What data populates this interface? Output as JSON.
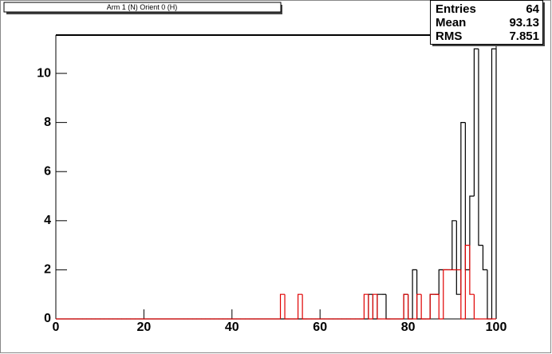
{
  "title": "Arm 1 (N) Orient 0 (H)",
  "stats": {
    "rows": [
      {
        "label": "Entries",
        "value": 64
      },
      {
        "label": "Mean",
        "value": 93.13
      },
      {
        "label": "RMS",
        "value": 7.851
      }
    ]
  },
  "chart_data": {
    "type": "histogram",
    "bins": [
      0,
      1,
      2,
      3,
      4,
      5,
      6,
      7,
      8,
      9,
      10,
      11,
      12,
      13,
      14,
      15,
      16,
      17,
      18,
      19,
      20,
      21,
      22,
      23,
      24,
      25,
      26,
      27,
      28,
      29,
      30,
      31,
      32,
      33,
      34,
      35,
      36,
      37,
      38,
      39,
      40,
      41,
      42,
      43,
      44,
      45,
      46,
      47,
      48,
      49,
      50,
      51,
      52,
      53,
      54,
      55,
      56,
      57,
      58,
      59,
      60,
      61,
      62,
      63,
      64,
      65,
      66,
      67,
      68,
      69,
      70,
      71,
      72,
      73,
      74,
      75,
      76,
      77,
      78,
      79,
      80,
      81,
      82,
      83,
      84,
      85,
      86,
      87,
      88,
      89,
      90,
      91,
      92,
      93,
      94,
      95,
      96,
      97,
      98,
      99,
      100
    ],
    "series": [
      {
        "color": "#000000",
        "values": [
          0,
          0,
          0,
          0,
          0,
          0,
          0,
          0,
          0,
          0,
          0,
          0,
          0,
          0,
          0,
          0,
          0,
          0,
          0,
          0,
          0,
          0,
          0,
          0,
          0,
          0,
          0,
          0,
          0,
          0,
          0,
          0,
          0,
          0,
          0,
          0,
          0,
          0,
          0,
          0,
          0,
          0,
          0,
          0,
          0,
          0,
          0,
          0,
          0,
          0,
          0,
          0,
          0,
          0,
          0,
          0,
          0,
          0,
          0,
          0,
          0,
          0,
          0,
          0,
          0,
          0,
          0,
          0,
          0,
          0,
          0,
          1,
          0,
          1,
          1,
          0,
          0,
          0,
          0,
          1,
          0,
          2,
          0,
          0,
          0,
          1,
          1,
          2,
          2,
          2,
          4,
          1,
          8,
          2,
          5,
          11,
          3,
          2,
          0,
          11
        ]
      },
      {
        "color": "#e00000",
        "values": [
          0,
          0,
          0,
          0,
          0,
          0,
          0,
          0,
          0,
          0,
          0,
          0,
          0,
          0,
          0,
          0,
          0,
          0,
          0,
          0,
          0,
          0,
          0,
          0,
          0,
          0,
          0,
          0,
          0,
          0,
          0,
          0,
          0,
          0,
          0,
          0,
          0,
          0,
          0,
          0,
          0,
          0,
          0,
          0,
          0,
          0,
          0,
          0,
          0,
          0,
          0,
          1,
          0,
          0,
          0,
          1,
          0,
          0,
          0,
          0,
          0,
          0,
          0,
          0,
          0,
          0,
          0,
          0,
          0,
          0,
          1,
          0,
          1,
          0,
          0,
          0,
          0,
          0,
          0,
          1,
          0,
          0,
          1,
          0,
          0,
          1,
          1,
          0,
          2,
          2,
          2,
          2,
          0,
          3,
          1,
          0,
          0,
          0,
          0,
          0
        ]
      }
    ],
    "xlim": [
      0,
      100
    ],
    "ylim": [
      0,
      11.56
    ],
    "xticks": [
      0,
      20,
      40,
      60,
      80,
      100
    ],
    "yticks": [
      0,
      2,
      4,
      6,
      8,
      10
    ]
  }
}
